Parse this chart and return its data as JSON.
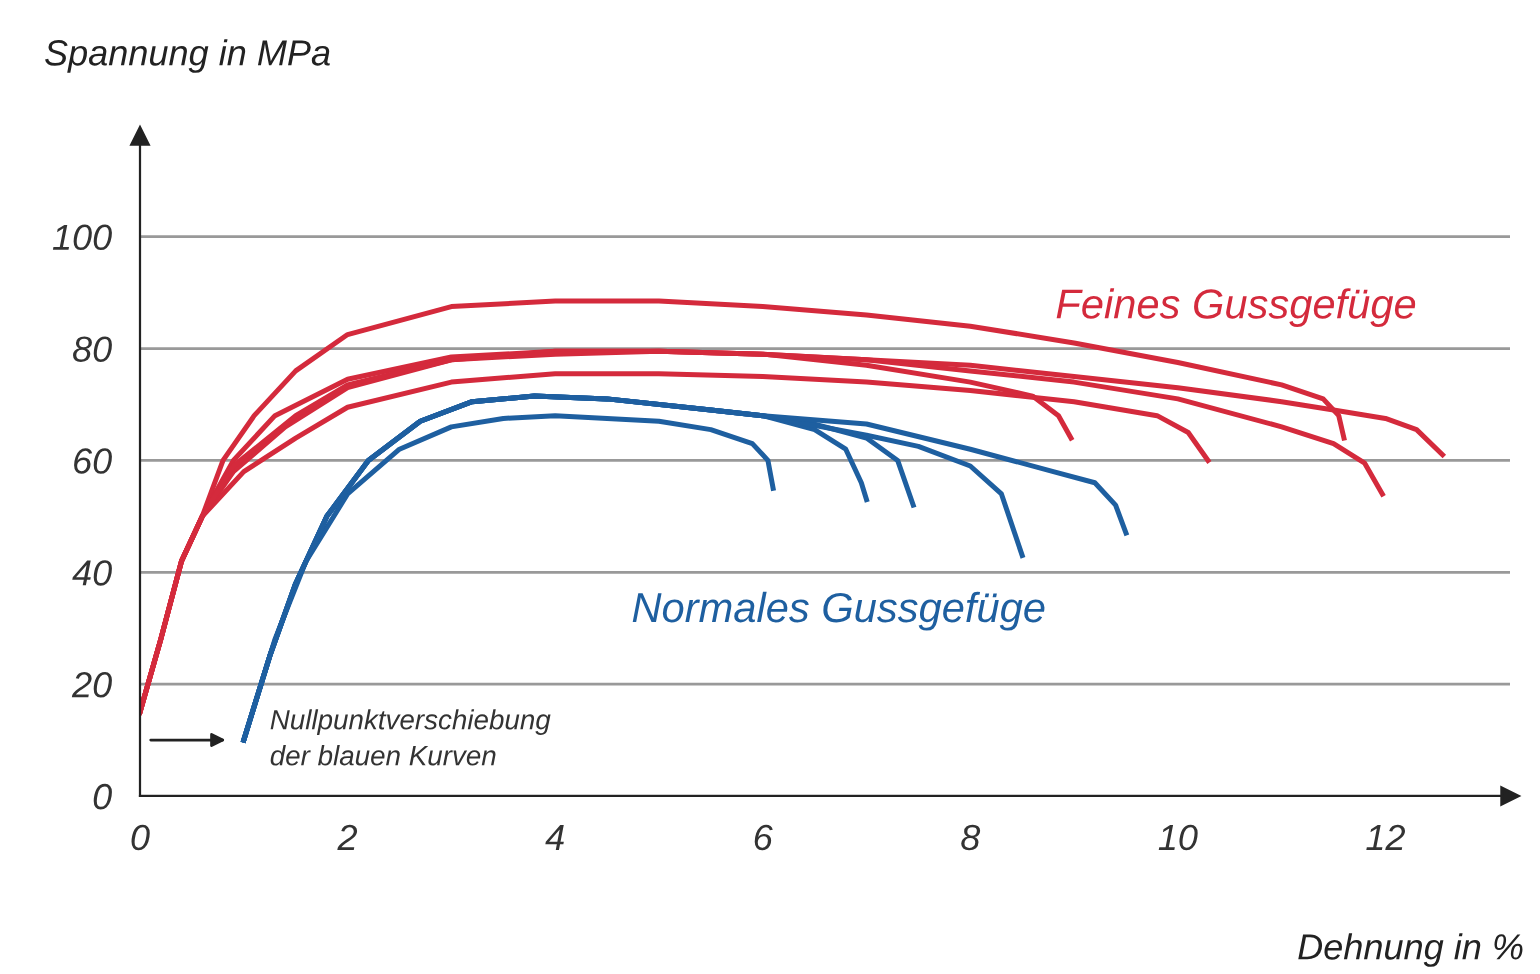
{
  "chart_data": {
    "type": "line",
    "xlabel": "Dehnung in %",
    "ylabel": "Spannung in MPa",
    "xlim": [
      0,
      13.2
    ],
    "ylim": [
      0,
      118
    ],
    "xticks": [
      0,
      2,
      4,
      6,
      8,
      10,
      12
    ],
    "yticks": [
      0,
      20,
      40,
      60,
      80,
      100
    ],
    "grid": "y",
    "marker": "none",
    "line_style": "solid",
    "series": [
      {
        "color": "#d42a3c",
        "x": [
          0,
          0.2,
          0.4,
          0.6,
          0.8,
          1.1,
          1.5,
          2,
          3,
          4,
          5,
          6,
          7,
          8,
          9,
          10,
          11,
          11.4,
          11.55,
          11.6
        ],
        "values": [
          15,
          28,
          42,
          50,
          60,
          68,
          76,
          82.5,
          87.5,
          88.5,
          88.5,
          87.5,
          86,
          84,
          81,
          77.5,
          73.5,
          71,
          68,
          64
        ]
      },
      {
        "color": "#d42a3c",
        "x": [
          0,
          0.2,
          0.4,
          0.6,
          0.9,
          1.3,
          2,
          3,
          4,
          5,
          6,
          7,
          8,
          8.6,
          8.85,
          8.97
        ],
        "values": [
          15,
          28,
          42,
          50,
          60,
          68,
          74.5,
          78.5,
          79.5,
          79.5,
          79,
          77,
          74,
          71.5,
          68,
          64
        ]
      },
      {
        "color": "#d42a3c",
        "x": [
          0,
          0.2,
          0.4,
          0.6,
          1,
          1.5,
          2,
          3,
          4,
          5,
          6,
          7,
          8,
          9,
          9.8,
          10.1,
          10.29
        ],
        "values": [
          15,
          28,
          42,
          50,
          58,
          64,
          69.5,
          74,
          75.5,
          75.5,
          75,
          74,
          72.5,
          70.5,
          68,
          65,
          60
        ]
      },
      {
        "color": "#d42a3c",
        "x": [
          0,
          0.2,
          0.4,
          0.6,
          0.9,
          1.4,
          2,
          3,
          4,
          5,
          6,
          7,
          8,
          9,
          10,
          11,
          11.5,
          12,
          12.3,
          12.55
        ],
        "values": [
          15,
          28,
          42,
          50,
          58,
          66,
          73,
          78,
          79.5,
          79.5,
          79,
          78,
          77,
          75,
          73,
          70.5,
          69,
          67.5,
          65.5,
          61
        ]
      },
      {
        "color": "#d42a3c",
        "x": [
          0,
          0.2,
          0.4,
          0.6,
          0.9,
          1.5,
          2,
          3,
          4,
          5,
          6,
          7,
          8,
          9,
          10,
          11,
          11.5,
          11.8,
          11.97
        ],
        "values": [
          15,
          28,
          42,
          50,
          59,
          68,
          73.5,
          78,
          79,
          79.5,
          79,
          78,
          76,
          74,
          71,
          66,
          63,
          59.5,
          54
        ]
      },
      {
        "color": "#1e5fa0",
        "x": [
          1,
          1.3,
          1.6,
          2,
          2.5,
          3,
          3.5,
          4,
          5,
          5.5,
          5.9,
          6.05,
          6.1
        ],
        "values": [
          10,
          28,
          42,
          54,
          62,
          66,
          67.5,
          68,
          67,
          65.5,
          63,
          60,
          55
        ]
      },
      {
        "color": "#1e5fa0",
        "x": [
          1,
          1.25,
          1.5,
          1.8,
          2.2,
          2.7,
          3.2,
          3.8,
          4.5,
          5.5,
          6,
          6.5,
          6.8,
          6.95,
          7.0
        ],
        "values": [
          10,
          25,
          38,
          50,
          60,
          67,
          70.5,
          71.5,
          71,
          69,
          68,
          65.5,
          62,
          56,
          53
        ]
      },
      {
        "color": "#1e5fa0",
        "x": [
          1,
          1.25,
          1.5,
          1.8,
          2.2,
          2.7,
          3.2,
          3.8,
          4.5,
          5.5,
          6,
          6.5,
          7,
          7.3,
          7.45
        ],
        "values": [
          10,
          25,
          38,
          50,
          60,
          67,
          70.5,
          71.5,
          71,
          69,
          68,
          66.5,
          64,
          60,
          52
        ]
      },
      {
        "color": "#1e5fa0",
        "x": [
          1,
          1.25,
          1.5,
          1.8,
          2.2,
          2.7,
          3.2,
          3.8,
          4.5,
          5.5,
          6,
          7,
          7.5,
          8,
          8.3,
          8.5
        ],
        "values": [
          10,
          25,
          38,
          50,
          60,
          67,
          70.5,
          71.5,
          71,
          69,
          68,
          64.5,
          62.5,
          59,
          54,
          43
        ]
      },
      {
        "color": "#1e5fa0",
        "x": [
          1,
          1.25,
          1.5,
          1.8,
          2.2,
          2.7,
          3.2,
          3.8,
          4.5,
          5.5,
          6,
          7,
          8,
          8.8,
          9.2,
          9.4,
          9.5
        ],
        "values": [
          10,
          25,
          38,
          50,
          60,
          67,
          70.5,
          71.5,
          71,
          69,
          68,
          66.5,
          62,
          58,
          56,
          52,
          47
        ]
      }
    ],
    "annotations": [
      "Feines Gussgefüge",
      "Normales Gussgefüge",
      {
        "text": "Nullpunktverschiebung\nder blauen Kurven",
        "x": 1.0,
        "y": 10
      }
    ]
  }
}
